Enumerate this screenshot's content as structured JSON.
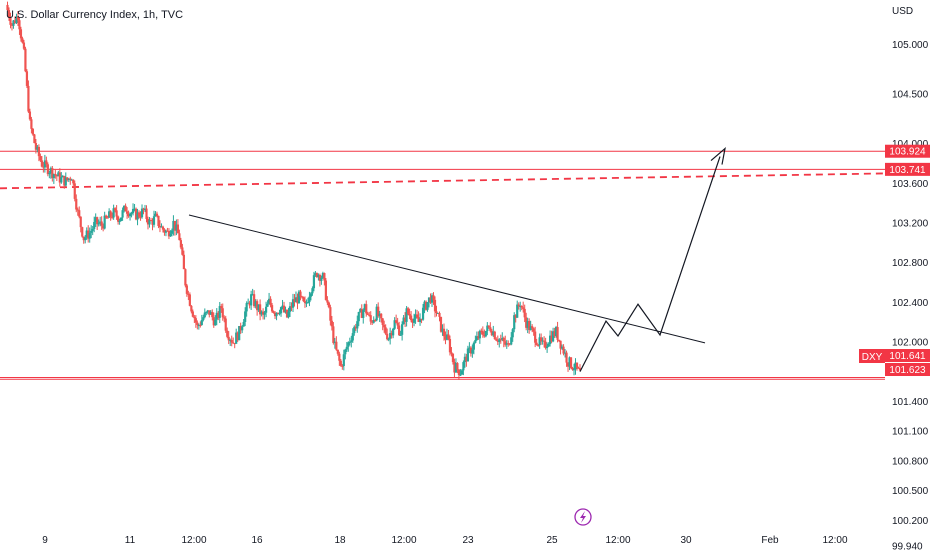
{
  "chart_data": {
    "type": "candlestick",
    "title": "U.S. Dollar Currency Index, 1h, TVC",
    "currency": "USD",
    "symbol": "DXY",
    "ylim": [
      99.9,
      105.45
    ],
    "y_ticks": [
      "105.000",
      "104.500",
      "104.000",
      "103.600",
      "103.200",
      "102.800",
      "102.400",
      "102.000",
      "101.700",
      "101.400",
      "101.100",
      "100.800",
      "100.500",
      "100.200",
      "99.940"
    ],
    "x_ticks": [
      "9",
      "11",
      "12:00",
      "16",
      "18",
      "12:00",
      "23",
      "25",
      "12:00",
      "30",
      "Feb",
      "12:00"
    ],
    "price_series": [
      105.4,
      105.2,
      105.3,
      104.9,
      104.2,
      103.95,
      103.8,
      103.75,
      103.7,
      103.65,
      103.62,
      103.68,
      103.3,
      103.05,
      103.1,
      103.2,
      103.18,
      103.25,
      103.3,
      103.25,
      103.35,
      103.3,
      103.28,
      103.32,
      103.2,
      103.25,
      103.15,
      103.1,
      103.2,
      103.05,
      102.6,
      102.35,
      102.15,
      102.25,
      102.3,
      102.2,
      102.35,
      102.1,
      102.0,
      102.1,
      102.3,
      102.45,
      102.35,
      102.25,
      102.4,
      102.3,
      102.35,
      102.25,
      102.4,
      102.45,
      102.35,
      102.55,
      102.7,
      102.65,
      102.3,
      101.95,
      101.75,
      101.95,
      102.1,
      102.25,
      102.35,
      102.2,
      102.3,
      102.15,
      102.05,
      102.2,
      102.1,
      102.3,
      102.25,
      102.2,
      102.35,
      102.45,
      102.3,
      102.1,
      102.0,
      101.75,
      101.7,
      101.85,
      101.95,
      102.05,
      102.1,
      102.15,
      102.05,
      102.0,
      101.95,
      102.25,
      102.4,
      102.2,
      102.1,
      102.0,
      101.95,
      102.05,
      102.1,
      101.95,
      101.8,
      101.75,
      101.68
    ],
    "horizontal_lines": [
      {
        "value": 103.924,
        "label": "103.924",
        "style": "solid"
      },
      {
        "value": 103.741,
        "label": "103.741",
        "style": "solid"
      },
      {
        "value": 101.641,
        "label": "101.641",
        "style": "solid"
      },
      {
        "value": 101.623,
        "label": "101.623",
        "style": "solid"
      }
    ],
    "dashed_resistance": {
      "from": 103.55,
      "to": 103.7
    },
    "trendline": {
      "from": 103.28,
      "to": 101.99
    },
    "projection_path": [
      101.7,
      102.21,
      102.06,
      102.38,
      102.07,
      103.87
    ],
    "colors": {
      "up": "#26a69a",
      "down": "#ef5350",
      "line": "#f23645",
      "text": "#131722",
      "icon": "#9c27b0"
    }
  }
}
